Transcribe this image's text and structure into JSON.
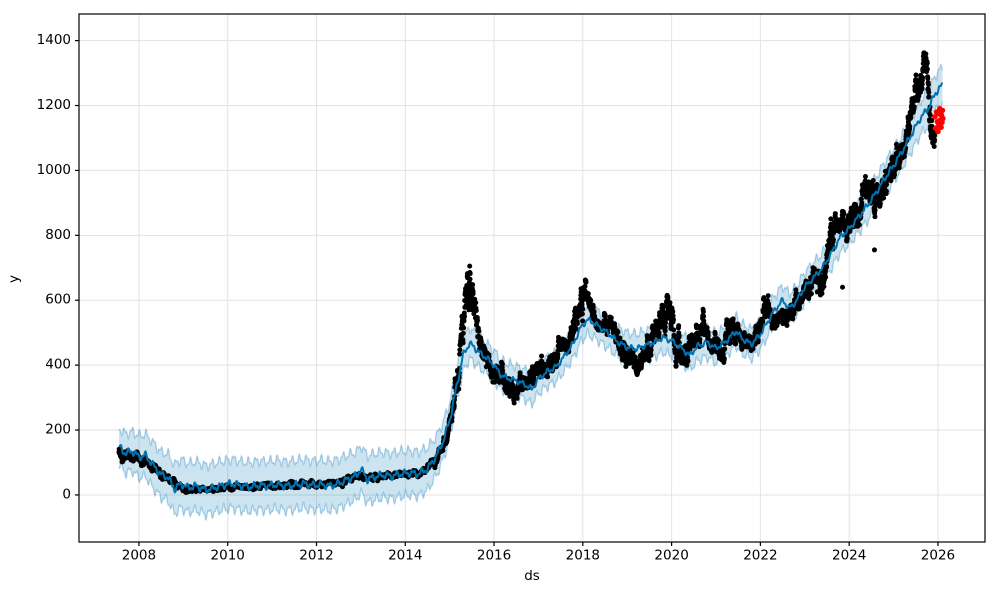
{
  "chart_data": {
    "type": "line",
    "title": "",
    "xlabel": "ds",
    "ylabel": "y",
    "grid": true,
    "legend": "none",
    "xlim": [
      2006.65,
      2027.06
    ],
    "ylim": [
      -145,
      1482
    ],
    "xticks": [
      2008,
      2010,
      2012,
      2014,
      2016,
      2018,
      2020,
      2022,
      2024,
      2026
    ],
    "yticks": [
      0,
      200,
      400,
      600,
      800,
      1000,
      1200,
      1400
    ],
    "layout": {
      "axes_rect": [
        79,
        14,
        985,
        542
      ],
      "tick_len": 4,
      "marker_radius": 2.5
    },
    "style": {
      "line_color": "#0072b2",
      "band_fill": "rgba(0,114,178,0.20)",
      "band_edge": "rgba(0,114,178,0.30)",
      "observed_color": "#000000",
      "recent_color": "#ff0000",
      "grid_color": "#e3e3e3",
      "spine_color": "#000000",
      "line_width": 2.0,
      "wiggle": {
        "a1": 8,
        "f1": 5.3,
        "p1": 1.3,
        "a2": 5,
        "f2": 12.7,
        "p2": 4.0,
        "band_a1": 12,
        "band_f1": 6.1,
        "band_p_up": 0.6,
        "band_p_lo": 3.1,
        "band_a2": 6,
        "band_f2": 13.9
      }
    },
    "series": [
      {
        "name": "forecast_yhat",
        "kind": "line_with_band",
        "x": [
          2007.55,
          2007.7,
          2007.85,
          2008.0,
          2008.15,
          2008.3,
          2008.5,
          2008.65,
          2008.8,
          2008.95,
          2009.1,
          2009.3,
          2009.5,
          2009.7,
          2009.9,
          2010.1,
          2010.3,
          2010.5,
          2010.7,
          2010.9,
          2011.1,
          2011.3,
          2011.5,
          2011.7,
          2011.9,
          2012.1,
          2012.3,
          2012.5,
          2012.7,
          2012.9,
          2013.0,
          2013.15,
          2013.3,
          2013.5,
          2013.7,
          2013.9,
          2014.1,
          2014.3,
          2014.5,
          2014.7,
          2014.85,
          2015.0,
          2015.15,
          2015.3,
          2015.45,
          2015.55,
          2015.7,
          2015.85,
          2016.0,
          2016.15,
          2016.3,
          2016.5,
          2016.7,
          2016.85,
          2017.0,
          2017.2,
          2017.4,
          2017.6,
          2017.8,
          2017.95,
          2018.1,
          2018.25,
          2018.4,
          2018.6,
          2018.8,
          2019.0,
          2019.2,
          2019.4,
          2019.6,
          2019.8,
          2020.0,
          2020.2,
          2020.4,
          2020.6,
          2020.8,
          2021.0,
          2021.2,
          2021.45,
          2021.6,
          2021.8,
          2022.0,
          2022.15,
          2022.3,
          2022.5,
          2022.65,
          2022.8,
          2023.0,
          2023.2,
          2023.4,
          2023.6,
          2023.8,
          2024.0,
          2024.2,
          2024.4,
          2024.6,
          2024.8,
          2025.0,
          2025.2,
          2025.4,
          2025.6,
          2025.8,
          2025.95,
          2026.1
        ],
        "y": [
          150,
          128,
          135,
          118,
          122,
          95,
          62,
          55,
          18,
          35,
          22,
          28,
          15,
          22,
          30,
          35,
          28,
          25,
          30,
          28,
          32,
          28,
          30,
          35,
          30,
          32,
          28,
          35,
          48,
          60,
          80,
          48,
          55,
          62,
          58,
          65,
          68,
          65,
          80,
          120,
          165,
          230,
          330,
          430,
          468,
          455,
          435,
          420,
          400,
          370,
          360,
          352,
          340,
          325,
          358,
          380,
          395,
          430,
          470,
          515,
          540,
          530,
          515,
          495,
          470,
          455,
          450,
          460,
          470,
          485,
          475,
          455,
          430,
          460,
          470,
          452,
          470,
          505,
          480,
          465,
          495,
          530,
          565,
          600,
          575,
          595,
          640,
          670,
          700,
          745,
          795,
          820,
          855,
          890,
          930,
          975,
          1015,
          1060,
          1110,
          1160,
          1195,
          1240,
          1263
        ],
        "band_half_width": [
          55,
          60,
          60,
          65,
          65,
          70,
          70,
          72,
          75,
          75,
          75,
          75,
          75,
          75,
          75,
          75,
          75,
          75,
          75,
          75,
          75,
          75,
          75,
          75,
          75,
          75,
          75,
          75,
          75,
          72,
          72,
          72,
          72,
          70,
          70,
          70,
          68,
          68,
          65,
          60,
          58,
          55,
          52,
          50,
          48,
          48,
          46,
          46,
          45,
          45,
          45,
          45,
          45,
          45,
          45,
          45,
          45,
          45,
          45,
          45,
          45,
          45,
          45,
          45,
          45,
          45,
          45,
          45,
          45,
          45,
          45,
          45,
          45,
          45,
          45,
          45,
          45,
          45,
          45,
          45,
          45,
          45,
          45,
          45,
          45,
          45,
          45,
          46,
          46,
          47,
          47,
          48,
          48,
          48,
          48,
          50,
          50,
          50,
          52,
          52,
          54,
          55,
          56
        ]
      },
      {
        "name": "observed_history",
        "kind": "scatter_cloud",
        "anchor_x": [
          2007.55,
          2007.8,
          2008.0,
          2008.3,
          2008.6,
          2008.9,
          2009.2,
          2009.6,
          2010.0,
          2010.5,
          2011.0,
          2011.5,
          2012.0,
          2012.5,
          2012.9,
          2013.1,
          2013.5,
          2014.0,
          2014.4,
          2014.7,
          2014.9,
          2015.1,
          2015.3,
          2015.45,
          2015.6,
          2015.75,
          2015.9,
          2016.1,
          2016.3,
          2016.5,
          2016.7,
          2016.9,
          2017.1,
          2017.4,
          2017.7,
          2017.9,
          2018.05,
          2018.2,
          2018.4,
          2018.6,
          2018.8,
          2019.0,
          2019.3,
          2019.55,
          2019.8,
          2020.0,
          2020.2,
          2020.45,
          2020.7,
          2020.9,
          2021.1,
          2021.35,
          2021.6,
          2021.85,
          2022.1,
          2022.3,
          2022.5,
          2022.7,
          2022.9,
          2023.1,
          2023.3,
          2023.55,
          2023.75,
          2023.95,
          2024.15,
          2024.35,
          2024.55,
          2024.75,
          2024.95,
          2025.15,
          2025.35,
          2025.55,
          2025.7,
          2025.85,
          2025.95
        ],
        "anchor_y": [
          130,
          120,
          115,
          90,
          50,
          25,
          18,
          15,
          25,
          25,
          30,
          32,
          35,
          38,
          55,
          50,
          60,
          65,
          70,
          110,
          170,
          280,
          520,
          640,
          520,
          430,
          390,
          360,
          340,
          330,
          360,
          345,
          390,
          420,
          470,
          560,
          650,
          545,
          540,
          545,
          480,
          430,
          400,
          480,
          560,
          520,
          420,
          470,
          530,
          470,
          440,
          520,
          470,
          470,
          560,
          560,
          545,
          585,
          605,
          630,
          665,
          760,
          850,
          820,
          860,
          950,
          900,
          930,
          1000,
          1060,
          1120,
          1230,
          1330,
          1150,
          1090
        ],
        "spread": [
          35,
          25,
          20,
          20,
          18,
          15,
          12,
          10,
          12,
          12,
          12,
          12,
          12,
          14,
          18,
          15,
          14,
          12,
          15,
          25,
          35,
          60,
          120,
          110,
          90,
          60,
          50,
          55,
          50,
          55,
          45,
          50,
          45,
          50,
          50,
          80,
          75,
          60,
          50,
          55,
          55,
          50,
          60,
          60,
          70,
          70,
          90,
          50,
          60,
          55,
          55,
          60,
          45,
          50,
          80,
          55,
          50,
          55,
          55,
          60,
          70,
          80,
          60,
          60,
          70,
          80,
          90,
          70,
          70,
          60,
          70,
          90,
          80,
          90,
          50
        ],
        "gen": {
          "seed": 42,
          "step_years": 0.0039,
          "persist": 0.88,
          "volatility": 0.55,
          "walk_gain": 1.05,
          "extra_noise": 0.35,
          "t_start": 2007.55,
          "t_end": 2025.93
        },
        "outliers": [
          [
            2024.57,
            755
          ],
          [
            2023.85,
            640
          ]
        ]
      },
      {
        "name": "recent_actuals",
        "kind": "scatter_points",
        "points": [
          [
            2025.93,
            1165
          ],
          [
            2025.95,
            1130
          ],
          [
            2025.97,
            1180
          ],
          [
            2025.99,
            1150
          ],
          [
            2026.0,
            1120
          ],
          [
            2026.01,
            1175
          ],
          [
            2026.02,
            1142
          ],
          [
            2026.04,
            1190
          ],
          [
            2026.05,
            1155
          ],
          [
            2026.07,
            1133
          ],
          [
            2026.08,
            1170
          ],
          [
            2026.09,
            1148
          ],
          [
            2026.1,
            1185
          ],
          [
            2026.11,
            1160
          ]
        ]
      }
    ]
  }
}
